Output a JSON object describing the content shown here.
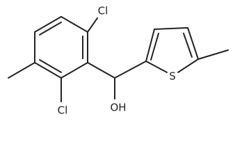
{
  "atoms": {
    "cl_top": "Cl",
    "cl_bottom": "Cl",
    "hydroxyl": "OH",
    "sulfur": "S"
  }
}
